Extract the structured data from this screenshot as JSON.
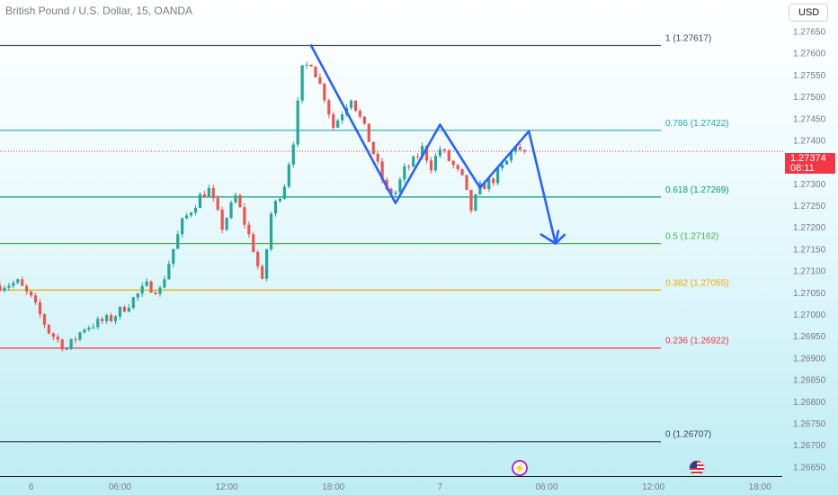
{
  "header": {
    "title": "British Pound / U.S. Dollar, 15, OANDA",
    "currency": "USD"
  },
  "price_tag": {
    "price": "1.27374",
    "countdown": "08:11"
  },
  "colors": {
    "up": "#26a69a",
    "down": "#ef5350",
    "pattern": "#2962ff",
    "fib_1": "#434651",
    "fib_0786": "#26a6b3",
    "fib_0618": "#089981",
    "fib_05": "#4caf50",
    "fib_0382": "#f7a600",
    "fib_0236": "#f23645",
    "fib_0": "#434651",
    "current_price": "#f23645"
  },
  "events": [
    {
      "name": "lightning-event-icon",
      "glyph": "⚡"
    },
    {
      "name": "us-flag-event-icon",
      "glyph": ""
    }
  ],
  "chart_data": {
    "type": "candlestick",
    "title": "British Pound / U.S. Dollar, 15, OANDA",
    "ylim": [
      1.2663,
      1.2768
    ],
    "y_ticks": [
      "1.27650",
      "1.27600",
      "1.27550",
      "1.27500",
      "1.27450",
      "1.27400",
      "1.27350",
      "1.27300",
      "1.27250",
      "1.27200",
      "1.27150",
      "1.27100",
      "1.27050",
      "1.27000",
      "1.26950",
      "1.26900",
      "1.26850",
      "1.26800",
      "1.26750",
      "1.26700",
      "1.26650"
    ],
    "x_ticks": [
      "6",
      "06:00",
      "12:00",
      "18:00",
      "7",
      "06:00",
      "12:00",
      "18:00"
    ],
    "x_tick_bars": [
      3,
      23,
      47,
      71,
      95,
      119,
      143,
      167
    ],
    "bar_range": [
      -4,
      172
    ],
    "current_price": 1.27374,
    "fib_levels": [
      {
        "label": "1 (1.27617)",
        "value": 1.27617,
        "color": "#434651"
      },
      {
        "label": "0.786 (1.27422)",
        "value": 1.27422,
        "color": "#26a6b3"
      },
      {
        "label": "0.618 (1.27269)",
        "value": 1.27269,
        "color": "#089981"
      },
      {
        "label": "0.5 (1.27162)",
        "value": 1.27162,
        "color": "#4caf50"
      },
      {
        "label": "0.382 (1.27055)",
        "value": 1.27055,
        "color": "#f7a600"
      },
      {
        "label": "0.236 (1.26922)",
        "value": 1.26922,
        "color": "#f23645"
      },
      {
        "label": "0 (1.26707)",
        "value": 1.26707,
        "color": "#434651"
      }
    ],
    "pattern_path": [
      {
        "bar": 66,
        "price": 1.27617
      },
      {
        "bar": 85,
        "price": 1.27255
      },
      {
        "bar": 95,
        "price": 1.27435
      },
      {
        "bar": 104,
        "price": 1.2729
      },
      {
        "bar": 115,
        "price": 1.2742
      },
      {
        "bar": 121,
        "price": 1.27162
      },
      {
        "bar": 123,
        "price": 1.27182
      }
    ],
    "pattern_arrow_tip": {
      "bar": 121,
      "price": 1.27162
    },
    "anchors": [
      {
        "bar": -4,
        "price": 1.27065
      },
      {
        "bar": 1,
        "price": 1.27072
      },
      {
        "bar": 4,
        "price": 1.27035
      },
      {
        "bar": 8,
        "price": 1.2696
      },
      {
        "bar": 12,
        "price": 1.2692
      },
      {
        "bar": 16,
        "price": 1.2697
      },
      {
        "bar": 22,
        "price": 1.2699
      },
      {
        "bar": 26,
        "price": 1.27025
      },
      {
        "bar": 30,
        "price": 1.27065
      },
      {
        "bar": 33,
        "price": 1.27055
      },
      {
        "bar": 36,
        "price": 1.2715
      },
      {
        "bar": 38,
        "price": 1.2721
      },
      {
        "bar": 42,
        "price": 1.2727
      },
      {
        "bar": 44,
        "price": 1.27285
      },
      {
        "bar": 47,
        "price": 1.272
      },
      {
        "bar": 50,
        "price": 1.2727
      },
      {
        "bar": 52,
        "price": 1.2721
      },
      {
        "bar": 54,
        "price": 1.2715
      },
      {
        "bar": 56,
        "price": 1.2707
      },
      {
        "bar": 58,
        "price": 1.2723
      },
      {
        "bar": 61,
        "price": 1.273
      },
      {
        "bar": 63,
        "price": 1.274
      },
      {
        "bar": 65,
        "price": 1.2756
      },
      {
        "bar": 67,
        "price": 1.2758
      },
      {
        "bar": 70,
        "price": 1.275
      },
      {
        "bar": 72,
        "price": 1.2743
      },
      {
        "bar": 76,
        "price": 1.275
      },
      {
        "bar": 80,
        "price": 1.274
      },
      {
        "bar": 84,
        "price": 1.2728
      },
      {
        "bar": 86,
        "price": 1.2728
      },
      {
        "bar": 88,
        "price": 1.2733
      },
      {
        "bar": 90,
        "price": 1.2735
      },
      {
        "bar": 92,
        "price": 1.2738
      },
      {
        "bar": 94,
        "price": 1.2734
      },
      {
        "bar": 96,
        "price": 1.2738
      },
      {
        "bar": 99,
        "price": 1.2734
      },
      {
        "bar": 101,
        "price": 1.2731
      },
      {
        "bar": 103,
        "price": 1.2724
      },
      {
        "bar": 105,
        "price": 1.2729
      },
      {
        "bar": 108,
        "price": 1.2731
      },
      {
        "bar": 111,
        "price": 1.2735
      },
      {
        "bar": 113,
        "price": 1.2739
      },
      {
        "bar": 114,
        "price": 1.27374
      }
    ]
  }
}
